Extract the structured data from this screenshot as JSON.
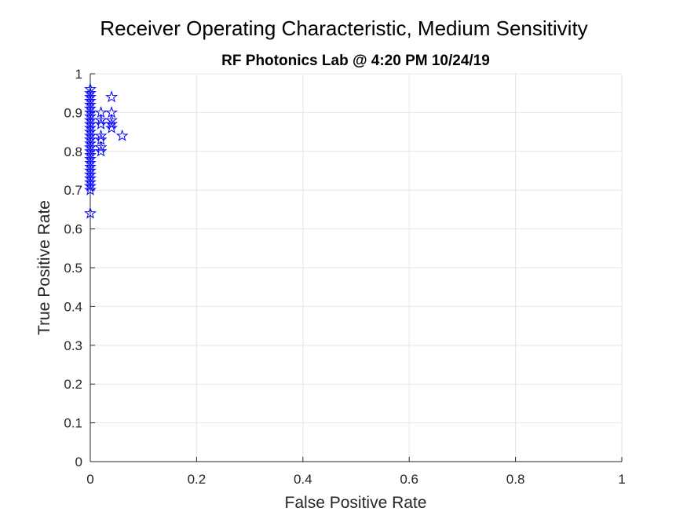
{
  "chart_data": {
    "type": "scatter",
    "title": "Receiver Operating Characteristic, Medium Sensitivity",
    "subtitle": "RF Photonics Lab @ 4:20 PM 10/24/19",
    "xlabel": "False Positive Rate",
    "ylabel": "True Positive Rate",
    "xlim": [
      0,
      1
    ],
    "ylim": [
      0,
      1
    ],
    "xticks": [
      "0",
      "0.2",
      "0.4",
      "0.6",
      "0.8",
      "1"
    ],
    "yticks": [
      "0",
      "0.1",
      "0.2",
      "0.3",
      "0.4",
      "0.5",
      "0.6",
      "0.7",
      "0.8",
      "0.9",
      "1"
    ],
    "grid": true,
    "marker": "pentagram",
    "marker_color": "#0000ff",
    "points": [
      {
        "x": 0,
        "y": 0.96
      },
      {
        "x": 0,
        "y": 0.95
      },
      {
        "x": 0,
        "y": 0.94
      },
      {
        "x": 0,
        "y": 0.93
      },
      {
        "x": 0,
        "y": 0.92
      },
      {
        "x": 0,
        "y": 0.91
      },
      {
        "x": 0,
        "y": 0.9
      },
      {
        "x": 0,
        "y": 0.89
      },
      {
        "x": 0,
        "y": 0.88
      },
      {
        "x": 0,
        "y": 0.87
      },
      {
        "x": 0,
        "y": 0.86
      },
      {
        "x": 0,
        "y": 0.85
      },
      {
        "x": 0,
        "y": 0.84
      },
      {
        "x": 0,
        "y": 0.83
      },
      {
        "x": 0,
        "y": 0.82
      },
      {
        "x": 0,
        "y": 0.81
      },
      {
        "x": 0,
        "y": 0.8
      },
      {
        "x": 0,
        "y": 0.79
      },
      {
        "x": 0,
        "y": 0.78
      },
      {
        "x": 0,
        "y": 0.77
      },
      {
        "x": 0,
        "y": 0.76
      },
      {
        "x": 0,
        "y": 0.75
      },
      {
        "x": 0,
        "y": 0.74
      },
      {
        "x": 0,
        "y": 0.73
      },
      {
        "x": 0,
        "y": 0.72
      },
      {
        "x": 0,
        "y": 0.71
      },
      {
        "x": 0,
        "y": 0.7
      },
      {
        "x": 0,
        "y": 0.64
      },
      {
        "x": 0.02,
        "y": 0.9
      },
      {
        "x": 0.02,
        "y": 0.88
      },
      {
        "x": 0.02,
        "y": 0.87
      },
      {
        "x": 0.02,
        "y": 0.84
      },
      {
        "x": 0.02,
        "y": 0.83
      },
      {
        "x": 0.02,
        "y": 0.81
      },
      {
        "x": 0.02,
        "y": 0.8
      },
      {
        "x": 0.04,
        "y": 0.94
      },
      {
        "x": 0.04,
        "y": 0.9
      },
      {
        "x": 0.04,
        "y": 0.88
      },
      {
        "x": 0.04,
        "y": 0.87
      },
      {
        "x": 0.04,
        "y": 0.86
      },
      {
        "x": 0.06,
        "y": 0.84
      }
    ]
  }
}
